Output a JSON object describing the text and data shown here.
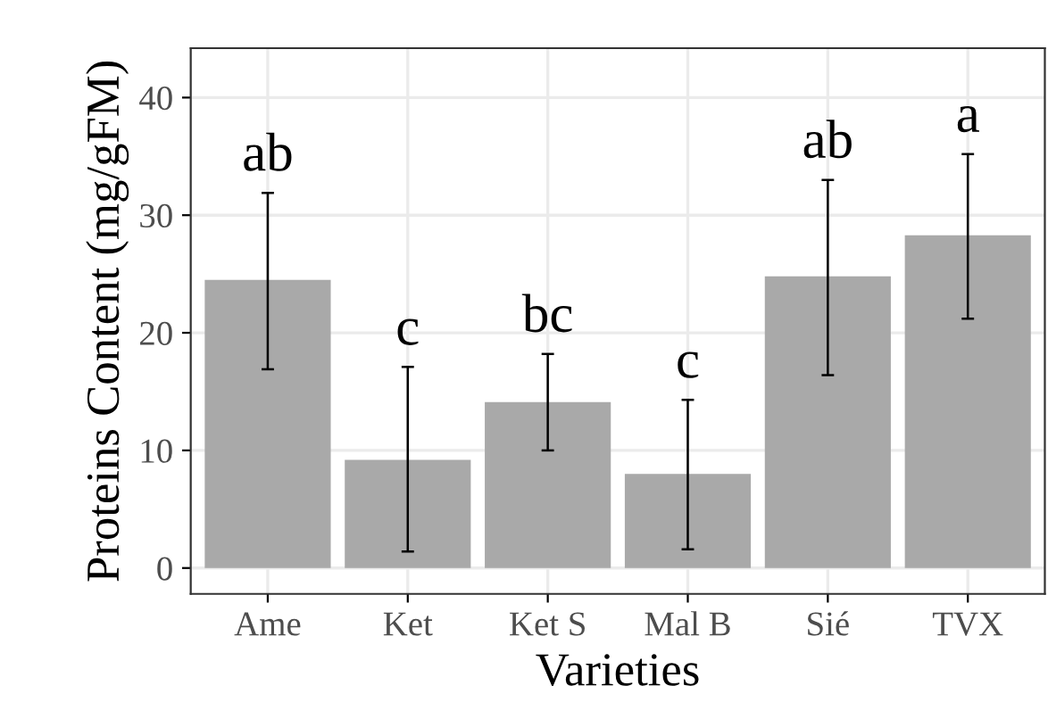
{
  "chart_data": {
    "type": "bar",
    "xlabel": "Varieties",
    "ylabel": "Proteins Content (mg/gFM)",
    "categories": [
      "Ame",
      "Ket",
      "Ket S",
      "Mal B",
      "Sié",
      "TVX"
    ],
    "values": [
      24.5,
      9.2,
      14.1,
      8.0,
      24.8,
      28.3
    ],
    "errors": [
      [
        16.9,
        31.9
      ],
      [
        1.4,
        17.1
      ],
      [
        10.0,
        18.2
      ],
      [
        1.6,
        14.3
      ],
      [
        16.4,
        33.0
      ],
      [
        21.2,
        35.2
      ]
    ],
    "color": "#a9a9a9",
    "ylim": [
      -2.2,
      44.2
    ],
    "yticks": [
      0,
      10,
      20,
      30,
      40
    ],
    "grid": true,
    "annotations": [
      "ab",
      "c",
      "bc",
      "c",
      "ab",
      "a"
    ]
  }
}
